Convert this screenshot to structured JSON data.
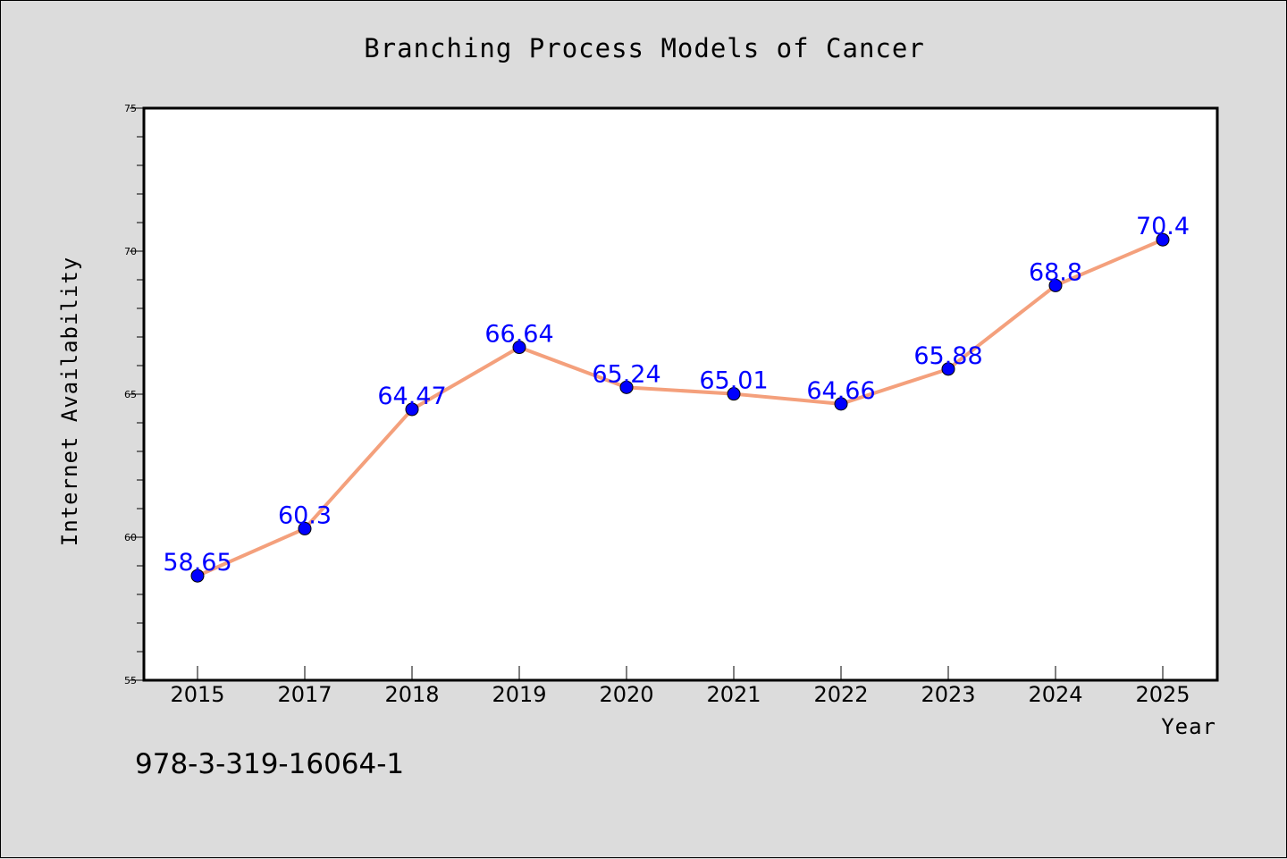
{
  "chart_data": {
    "type": "line",
    "title": "Branching Process Models of Cancer",
    "xlabel": "Year",
    "ylabel": "Internet Availability",
    "categories": [
      "2015",
      "2017",
      "2018",
      "2019",
      "2020",
      "2021",
      "2022",
      "2023",
      "2024",
      "2025"
    ],
    "values": [
      58.65,
      60.3,
      64.47,
      66.64,
      65.24,
      65.01,
      64.66,
      65.88,
      68.8,
      70.4
    ],
    "data_labels": [
      "58.65",
      "60.3",
      "64.47",
      "66.64",
      "65.24",
      "65.01",
      "64.66",
      "65.88",
      "68.8",
      "70.4"
    ],
    "ylim": [
      55,
      75
    ],
    "yticks": [
      55,
      60,
      65,
      70,
      75
    ],
    "grid": false,
    "line_color": "#f4a07c",
    "marker_color": "#0000ff",
    "label_color": "#0000ff"
  },
  "footer": {
    "isbn": "978-3-319-16064-1"
  }
}
